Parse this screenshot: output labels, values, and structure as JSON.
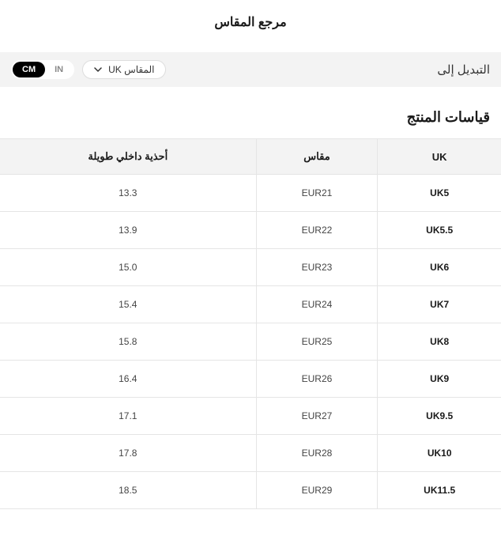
{
  "title": "مرجع المقاس",
  "controls": {
    "switch_label": "التبديل إلى",
    "unit_cm": "CM",
    "unit_in": "IN",
    "active_unit": "CM",
    "size_system_label": "UK المقاس"
  },
  "section_title": "قياسات المنتج",
  "table": {
    "columns": [
      "UK",
      "مقاس",
      "أحذية داخلي طويلة"
    ],
    "rows": [
      {
        "uk": "UK5",
        "size": "EUR21",
        "length": "13.3"
      },
      {
        "uk": "UK5.5",
        "size": "EUR22",
        "length": "13.9"
      },
      {
        "uk": "UK6",
        "size": "EUR23",
        "length": "15.0"
      },
      {
        "uk": "UK7",
        "size": "EUR24",
        "length": "15.4"
      },
      {
        "uk": "UK8",
        "size": "EUR25",
        "length": "15.8"
      },
      {
        "uk": "UK9",
        "size": "EUR26",
        "length": "16.4"
      },
      {
        "uk": "UK9.5",
        "size": "EUR27",
        "length": "17.1"
      },
      {
        "uk": "UK10",
        "size": "EUR28",
        "length": "17.8"
      },
      {
        "uk": "UK11.5",
        "size": "EUR29",
        "length": "18.5"
      }
    ]
  },
  "style": {
    "header_bg": "#f3f3f3",
    "border_color": "#e5e5e5",
    "active_bg": "#000000",
    "active_fg": "#ffffff"
  }
}
